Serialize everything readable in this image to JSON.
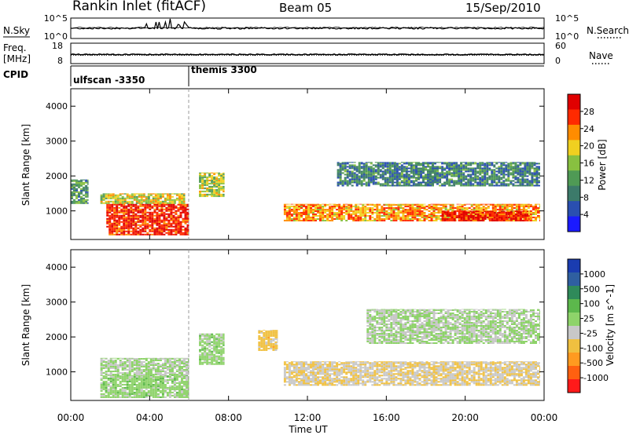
{
  "header": {
    "station": "Rankin Inlet (fitACF)",
    "beam": "Beam 05",
    "date": "15/Sep/2010"
  },
  "nsky_panel": {
    "left_label": "N.Sky",
    "left_ticks": [
      "10^5",
      "10^0"
    ],
    "right_ticks": [
      "10^5",
      "10^0"
    ],
    "right_label": "N.Search"
  },
  "freq_panel": {
    "left_label_1": "Freq.",
    "left_label_2": "[MHz]",
    "left_ticks": [
      "18",
      "8"
    ],
    "right_ticks": [
      "60",
      "0"
    ],
    "right_label": "Nave"
  },
  "cpid_panel": {
    "label": "CPID",
    "segments": [
      {
        "text": "ulfscan -3350",
        "start_hour": 0
      },
      {
        "text": "themis 3300",
        "start_hour": 6
      }
    ]
  },
  "colors": {
    "power": [
      "#1a1aff",
      "#2a4fb0",
      "#3c7a6a",
      "#4f9a55",
      "#88c040",
      "#f0d020",
      "#ff8c00",
      "#ff2a00",
      "#e00000"
    ],
    "velocity": [
      "#1a3cb0",
      "#2f5fa0",
      "#2f8a5a",
      "#5cb84c",
      "#8ed36a",
      "#c8c8c8",
      "#f0c040",
      "#ff9a20",
      "#ff6010",
      "#ff1a1a"
    ]
  },
  "chart_data": [
    {
      "type": "heatmap",
      "title": "Power",
      "ylabel": "Slant Range [km]",
      "xlabel": "",
      "x_ticks": [
        "00:00",
        "04:00",
        "08:00",
        "12:00",
        "16:00",
        "20:00",
        "00:00"
      ],
      "x_range_hours": [
        0,
        24
      ],
      "ylim": [
        180,
        4500
      ],
      "y_ticks": [
        1000,
        2000,
        3000,
        4000
      ],
      "colorbar": {
        "label": "Power [dB]",
        "ticks": [
          "4",
          "8",
          "12",
          "16",
          "20",
          "24",
          "28"
        ],
        "range": [
          0,
          30
        ]
      },
      "series": [
        {
          "name": "",
          "regions": [
            {
              "t": [
                1.8,
                6.0
              ],
              "r": [
                300,
                1200
              ],
              "value": 28
            },
            {
              "t": [
                1.5,
                5.8
              ],
              "r": [
                1200,
                1500
              ],
              "value": 18
            },
            {
              "t": [
                0.0,
                0.9
              ],
              "r": [
                1200,
                1900
              ],
              "value": 10
            },
            {
              "t": [
                6.5,
                7.8
              ],
              "r": [
                1400,
                2100
              ],
              "value": 16
            },
            {
              "t": [
                10.8,
                23.8
              ],
              "r": [
                700,
                1200
              ],
              "value": 22
            },
            {
              "t": [
                13.5,
                23.8
              ],
              "r": [
                1700,
                2400
              ],
              "value": 8
            },
            {
              "t": [
                18.8,
                23.2
              ],
              "r": [
                700,
                1000
              ],
              "value": 28
            }
          ]
        }
      ]
    },
    {
      "type": "heatmap",
      "title": "Velocity",
      "ylabel": "Slant Range [km]",
      "xlabel": "Time UT",
      "x_ticks": [
        "00:00",
        "04:00",
        "08:00",
        "12:00",
        "16:00",
        "20:00",
        "00:00"
      ],
      "x_range_hours": [
        0,
        24
      ],
      "ylim": [
        180,
        4500
      ],
      "y_ticks": [
        1000,
        2000,
        3000,
        4000
      ],
      "colorbar": {
        "label": "Velocity [m s^-1]",
        "ticks": [
          "1000",
          "500",
          "100",
          "25",
          "-25",
          "-100",
          "-500",
          "-1000"
        ],
        "range": [
          -1000,
          1000
        ]
      },
      "series": [
        {
          "name": "",
          "regions": [
            {
              "t": [
                1.5,
                6.0
              ],
              "r": [
                250,
                900
              ],
              "value": 100
            },
            {
              "t": [
                1.5,
                6.0
              ],
              "r": [
                900,
                1400
              ],
              "value": 0
            },
            {
              "t": [
                6.5,
                7.8
              ],
              "r": [
                1200,
                2100
              ],
              "value": 100
            },
            {
              "t": [
                10.8,
                23.8
              ],
              "r": [
                600,
                1300
              ],
              "value": -200
            },
            {
              "t": [
                15.0,
                23.8
              ],
              "r": [
                1800,
                2800
              ],
              "value": 0
            },
            {
              "t": [
                9.5,
                10.5
              ],
              "r": [
                1600,
                2200
              ],
              "value": -300
            }
          ]
        }
      ]
    }
  ]
}
